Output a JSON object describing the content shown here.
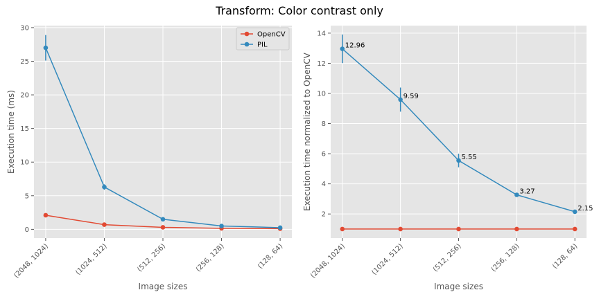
{
  "title": "Transform: Color contrast only",
  "colors": {
    "opencv": "#E24A33",
    "pil": "#348ABD",
    "panel_bg": "#E5E5E5",
    "grid": "#FFFFFF"
  },
  "chart_data": [
    {
      "type": "line",
      "categories": [
        "(2048, 1024)",
        "(1024, 512)",
        "(512, 256)",
        "(256, 128)",
        "(128, 64)"
      ],
      "xlabel": "Image sizes",
      "ylabel": "Execution time (ms)",
      "ylim": [
        -1.3,
        30.3
      ],
      "yticks": [
        0,
        5,
        10,
        15,
        20,
        25,
        30
      ],
      "grid": true,
      "legend": "top-right",
      "series": [
        {
          "name": "OpenCV",
          "values": [
            2.1,
            0.7,
            0.3,
            0.15,
            0.1
          ],
          "errors": [
            0.1,
            0.05,
            0.02,
            0.01,
            0.01
          ]
        },
        {
          "name": "PIL",
          "values": [
            27.0,
            6.3,
            1.5,
            0.5,
            0.25
          ],
          "errors": [
            1.9,
            0.4,
            0.1,
            0.05,
            0.02
          ]
        }
      ]
    },
    {
      "type": "line",
      "categories": [
        "(2048, 1024)",
        "(1024, 512)",
        "(512, 256)",
        "(256, 128)",
        "(128, 64)"
      ],
      "xlabel": "Image sizes",
      "ylabel": "Execution time normalized to OpenCV",
      "ylim": [
        0.4,
        14.5
      ],
      "yticks": [
        2,
        4,
        6,
        8,
        10,
        12,
        14
      ],
      "grid": true,
      "series": [
        {
          "values": [
            1,
            1,
            1,
            1,
            1
          ],
          "errors": [
            0,
            0,
            0,
            0,
            0
          ]
        },
        {
          "values": [
            12.96,
            9.59,
            5.55,
            3.27,
            2.15
          ],
          "errors": [
            0.95,
            0.8,
            0.45,
            0.12,
            0.1
          ],
          "labels": [
            "12.96",
            "9.59",
            "5.55",
            "3.27",
            "2.15"
          ]
        }
      ]
    }
  ]
}
